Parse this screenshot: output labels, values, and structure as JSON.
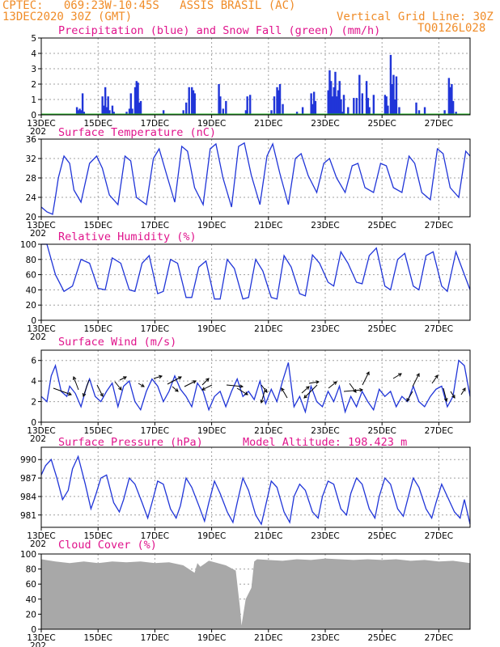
{
  "header": {
    "line1_left": "CPTEC:   069:23W-10:45S   ASSIS BRASIL (AC)",
    "line2_left": "13DEC2020 30Z (GMT)",
    "line2_right": "Vertical Grid Line: 30Z",
    "line3_right": "TQ0126L028"
  },
  "colors": {
    "line": "#2035d8",
    "snow": "#20b020",
    "cloud": "#a8a8a8",
    "title": "#e0148c",
    "header": "#f08c28",
    "grid": "#a0a0a0"
  },
  "x_labels": [
    "13DEC",
    "15DEC",
    "17DEC",
    "19DEC",
    "21DEC",
    "23DEC",
    "25DEC",
    "27DEC"
  ],
  "year_fragment": "202",
  "chart_data": [
    {
      "type": "bar",
      "title": "Precipitation (blue) and Snow Fall (green) (mm/h)",
      "ylim": [
        0,
        5
      ],
      "yticks": [
        0,
        1,
        2,
        3,
        4,
        5
      ],
      "x_day_range": [
        13,
        28.1
      ],
      "series": [
        {
          "name": "Precipitation",
          "x": [
            14.25,
            14.3,
            14.35,
            14.4,
            14.45,
            14.5,
            15.15,
            15.2,
            15.25,
            15.3,
            15.35,
            15.4,
            15.5,
            15.55,
            16.0,
            16.1,
            16.15,
            16.2,
            16.3,
            16.35,
            16.4,
            16.45,
            16.5,
            17.3,
            18.0,
            18.1,
            18.2,
            18.3,
            18.35,
            18.4,
            19.25,
            19.3,
            19.4,
            19.5,
            20.2,
            20.25,
            20.35,
            21.1,
            21.2,
            21.3,
            21.35,
            21.4,
            21.5,
            22.0,
            22.2,
            22.5,
            22.55,
            22.6,
            22.65,
            23.1,
            23.15,
            23.2,
            23.25,
            23.3,
            23.35,
            23.4,
            23.45,
            23.5,
            23.55,
            23.6,
            23.65,
            23.8,
            24.0,
            24.1,
            24.2,
            24.3,
            24.45,
            24.5,
            24.55,
            24.7,
            25.1,
            25.15,
            25.2,
            25.3,
            25.35,
            25.4,
            25.45,
            25.5,
            25.6,
            26.2,
            26.3,
            26.5,
            27.2,
            27.35,
            27.4,
            27.45,
            27.5,
            27.6
          ],
          "values": [
            0.5,
            0.3,
            0.4,
            0.3,
            1.4,
            0.2,
            1.2,
            0.6,
            1.8,
            0.5,
            1.2,
            0.3,
            0.6,
            0.2,
            0.2,
            0.4,
            1.4,
            0.4,
            1.8,
            2.2,
            2.1,
            0.8,
            0.9,
            0.3,
            0.3,
            0.8,
            1.8,
            1.8,
            1.6,
            1.4,
            2.0,
            1.2,
            0.4,
            0.9,
            0.3,
            1.2,
            1.3,
            0.3,
            1.2,
            1.8,
            1.6,
            2.0,
            0.7,
            0.2,
            0.5,
            1.4,
            0.7,
            1.5,
            0.9,
            1.6,
            2.9,
            2.2,
            1.2,
            1.8,
            2.8,
            1.2,
            1.6,
            2.2,
            1.0,
            0.2,
            1.3,
            0.5,
            1.1,
            1.1,
            2.6,
            1.4,
            2.2,
            1.1,
            0.5,
            1.3,
            1.3,
            1.2,
            0.6,
            3.9,
            2.0,
            2.6,
            1.0,
            2.5,
            0.5,
            0.8,
            0.3,
            0.5,
            0.3,
            2.4,
            1.8,
            2.0,
            0.9,
            0.2
          ]
        },
        {
          "name": "Snow Fall",
          "values": [
            0
          ]
        }
      ]
    },
    {
      "type": "line",
      "title": "Surface Temperature (nC)",
      "ylim": [
        20,
        36
      ],
      "yticks": [
        20,
        24,
        28,
        32,
        36
      ],
      "x_day_range": [
        13,
        28.1
      ],
      "x": [
        13.0,
        13.2,
        13.4,
        13.5,
        13.6,
        13.8,
        14.0,
        14.15,
        14.4,
        14.7,
        14.95,
        15.15,
        15.4,
        15.7,
        15.95,
        16.15,
        16.35,
        16.7,
        16.95,
        17.15,
        17.4,
        17.7,
        17.95,
        18.15,
        18.4,
        18.7,
        18.95,
        19.15,
        19.4,
        19.7,
        19.95,
        20.15,
        20.4,
        20.7,
        20.95,
        21.15,
        21.4,
        21.7,
        21.95,
        22.15,
        22.4,
        22.7,
        22.95,
        23.15,
        23.4,
        23.7,
        23.95,
        24.15,
        24.4,
        24.7,
        24.95,
        25.15,
        25.4,
        25.7,
        25.95,
        26.15,
        26.4,
        26.7,
        26.95,
        27.15,
        27.4,
        27.7,
        27.95,
        28.1
      ],
      "values": [
        22.0,
        21.0,
        20.5,
        24.0,
        28.0,
        32.5,
        31.0,
        25.5,
        23.0,
        31.0,
        32.5,
        30.0,
        24.5,
        22.5,
        32.5,
        31.5,
        24.0,
        22.5,
        32.0,
        34.0,
        29.0,
        23.0,
        34.5,
        33.5,
        26.0,
        22.5,
        34.0,
        35.0,
        28.0,
        22.0,
        34.5,
        35.2,
        28.5,
        22.5,
        32.5,
        35.0,
        29.0,
        22.5,
        32.0,
        33.0,
        28.5,
        25.0,
        31.0,
        32.0,
        28.0,
        25.0,
        30.5,
        31.0,
        26.0,
        25.0,
        31.0,
        30.5,
        26.0,
        25.0,
        32.5,
        31.0,
        25.0,
        23.5,
        34.0,
        33.0,
        26.0,
        24.0,
        33.5,
        32.5
      ]
    },
    {
      "type": "line",
      "title": "Relative Humidity (%)",
      "ylim": [
        0,
        100
      ],
      "yticks": [
        0,
        20,
        40,
        60,
        80,
        100
      ],
      "x_day_range": [
        13,
        28.1
      ],
      "x": [
        13.0,
        13.2,
        13.5,
        13.8,
        14.1,
        14.4,
        14.7,
        15.0,
        15.25,
        15.5,
        15.8,
        16.1,
        16.3,
        16.55,
        16.8,
        17.1,
        17.3,
        17.55,
        17.8,
        18.1,
        18.3,
        18.55,
        18.8,
        19.1,
        19.3,
        19.55,
        19.8,
        20.1,
        20.3,
        20.55,
        20.8,
        21.1,
        21.3,
        21.55,
        21.8,
        22.1,
        22.3,
        22.55,
        22.8,
        23.1,
        23.3,
        23.55,
        23.8,
        24.1,
        24.3,
        24.55,
        24.8,
        25.1,
        25.3,
        25.55,
        25.8,
        26.1,
        26.3,
        26.55,
        26.8,
        27.1,
        27.3,
        27.6,
        27.85,
        28.1
      ],
      "values": [
        100,
        100,
        60,
        38,
        45,
        80,
        75,
        42,
        40,
        82,
        75,
        40,
        38,
        75,
        85,
        35,
        38,
        80,
        75,
        30,
        30,
        70,
        78,
        28,
        28,
        80,
        68,
        28,
        30,
        80,
        65,
        30,
        28,
        85,
        70,
        35,
        32,
        86,
        75,
        50,
        45,
        90,
        75,
        50,
        48,
        85,
        95,
        45,
        40,
        80,
        88,
        45,
        40,
        85,
        90,
        45,
        38,
        90,
        65,
        40
      ]
    },
    {
      "type": "line",
      "title": "Surface Wind (m/s)",
      "ylim": [
        0,
        7
      ],
      "yticks": [
        0,
        2,
        4,
        6
      ],
      "x_day_range": [
        13,
        28.1
      ],
      "x": [
        13.0,
        13.2,
        13.35,
        13.5,
        13.7,
        13.9,
        14.0,
        14.2,
        14.4,
        14.6,
        14.7,
        14.9,
        15.1,
        15.3,
        15.5,
        15.7,
        15.9,
        16.1,
        16.3,
        16.5,
        16.7,
        16.9,
        17.1,
        17.3,
        17.5,
        17.7,
        17.9,
        18.1,
        18.3,
        18.5,
        18.7,
        18.9,
        19.1,
        19.3,
        19.5,
        19.7,
        19.9,
        20.1,
        20.3,
        20.5,
        20.7,
        20.9,
        21.1,
        21.3,
        21.5,
        21.7,
        21.9,
        22.1,
        22.3,
        22.5,
        22.7,
        22.9,
        23.1,
        23.3,
        23.5,
        23.7,
        23.9,
        24.1,
        24.3,
        24.5,
        24.7,
        24.9,
        25.1,
        25.3,
        25.5,
        25.7,
        25.9,
        26.1,
        26.3,
        26.5,
        26.7,
        26.9,
        27.1,
        27.3,
        27.5,
        27.7,
        27.9,
        28.1
      ],
      "values": [
        2.5,
        2.0,
        4.5,
        5.5,
        3.0,
        2.5,
        3.5,
        2.8,
        1.5,
        3.5,
        4.2,
        2.5,
        2.0,
        3.0,
        3.8,
        1.5,
        3.5,
        4.0,
        2.0,
        1.2,
        3.0,
        4.2,
        3.5,
        2.0,
        3.0,
        4.5,
        3.2,
        2.5,
        1.5,
        3.8,
        3.0,
        1.2,
        2.5,
        3.0,
        1.5,
        3.0,
        4.2,
        2.5,
        3.0,
        2.2,
        4.0,
        1.8,
        3.2,
        2.0,
        4.0,
        5.8,
        1.5,
        2.5,
        1.0,
        3.5,
        2.0,
        1.5,
        3.0,
        2.0,
        3.5,
        1.0,
        2.5,
        1.5,
        3.0,
        2.0,
        1.2,
        3.2,
        2.5,
        3.0,
        1.5,
        2.5,
        2.0,
        3.5,
        2.0,
        1.5,
        2.5,
        3.2,
        3.5,
        1.5,
        2.5,
        6.0,
        5.5,
        2.5
      ]
    },
    {
      "type": "line",
      "title": "Surface Pressure (hPa)",
      "annotation": "Model Altitude: 198.423 m",
      "ylim": [
        979,
        992
      ],
      "yticks": [
        981,
        984,
        987,
        990
      ],
      "x_day_range": [
        13,
        28.1
      ],
      "x": [
        13.0,
        13.15,
        13.35,
        13.55,
        13.75,
        13.95,
        14.1,
        14.3,
        14.55,
        14.75,
        14.9,
        15.1,
        15.3,
        15.55,
        15.75,
        15.9,
        16.1,
        16.3,
        16.55,
        16.75,
        16.9,
        17.1,
        17.3,
        17.55,
        17.75,
        17.9,
        18.1,
        18.3,
        18.55,
        18.75,
        18.9,
        19.1,
        19.3,
        19.55,
        19.75,
        19.9,
        20.1,
        20.3,
        20.55,
        20.75,
        20.9,
        21.1,
        21.3,
        21.55,
        21.75,
        21.9,
        22.1,
        22.3,
        22.55,
        22.75,
        22.9,
        23.1,
        23.3,
        23.55,
        23.75,
        23.9,
        24.1,
        24.3,
        24.55,
        24.75,
        24.9,
        25.1,
        25.3,
        25.55,
        25.75,
        25.9,
        26.1,
        26.3,
        26.55,
        26.75,
        26.9,
        27.1,
        27.3,
        27.55,
        27.75,
        27.9,
        28.1
      ],
      "values": [
        987.5,
        989.0,
        990.0,
        987.0,
        983.5,
        985.0,
        988.5,
        990.5,
        986.0,
        982.0,
        984.0,
        987.0,
        987.5,
        983.0,
        981.5,
        983.5,
        987.0,
        986.0,
        983.0,
        980.5,
        983.0,
        986.5,
        986.0,
        982.0,
        980.5,
        982.5,
        987.0,
        985.5,
        982.5,
        980.0,
        983.0,
        986.5,
        984.5,
        981.5,
        979.8,
        983.0,
        987.0,
        985.0,
        981.0,
        979.5,
        982.5,
        986.5,
        985.5,
        981.5,
        979.8,
        984.0,
        986.0,
        985.0,
        981.5,
        980.5,
        984.0,
        986.5,
        986.0,
        982.0,
        981.0,
        984.5,
        987.0,
        986.0,
        982.0,
        980.5,
        984.0,
        987.0,
        986.0,
        982.0,
        980.8,
        983.5,
        987.0,
        985.5,
        982.0,
        980.5,
        983.0,
        986.0,
        984.0,
        981.5,
        980.5,
        983.5,
        979.5
      ]
    },
    {
      "type": "area",
      "title": "Cloud Cover (%)",
      "ylim": [
        0,
        100
      ],
      "yticks": [
        0,
        20,
        40,
        60,
        80,
        100
      ],
      "x_day_range": [
        13,
        28.1
      ],
      "x": [
        13.0,
        13.5,
        14.0,
        14.5,
        15.0,
        15.5,
        16.0,
        16.5,
        17.0,
        17.5,
        18.0,
        18.4,
        18.5,
        18.6,
        18.9,
        19.0,
        19.5,
        19.85,
        20.0,
        20.05,
        20.2,
        20.4,
        20.5,
        20.6,
        21.0,
        21.5,
        22.0,
        22.5,
        23.0,
        23.5,
        24.0,
        24.5,
        25.0,
        25.5,
        26.0,
        26.5,
        27.0,
        27.5,
        28.1
      ],
      "values": [
        93,
        90,
        88,
        90,
        88,
        90,
        89,
        90,
        88,
        89,
        85,
        75,
        88,
        83,
        91,
        90,
        85,
        78,
        28,
        5,
        40,
        55,
        90,
        93,
        92,
        91,
        93,
        92,
        94,
        93,
        92,
        93,
        92,
        93,
        91,
        92,
        90,
        91,
        88
      ]
    }
  ]
}
